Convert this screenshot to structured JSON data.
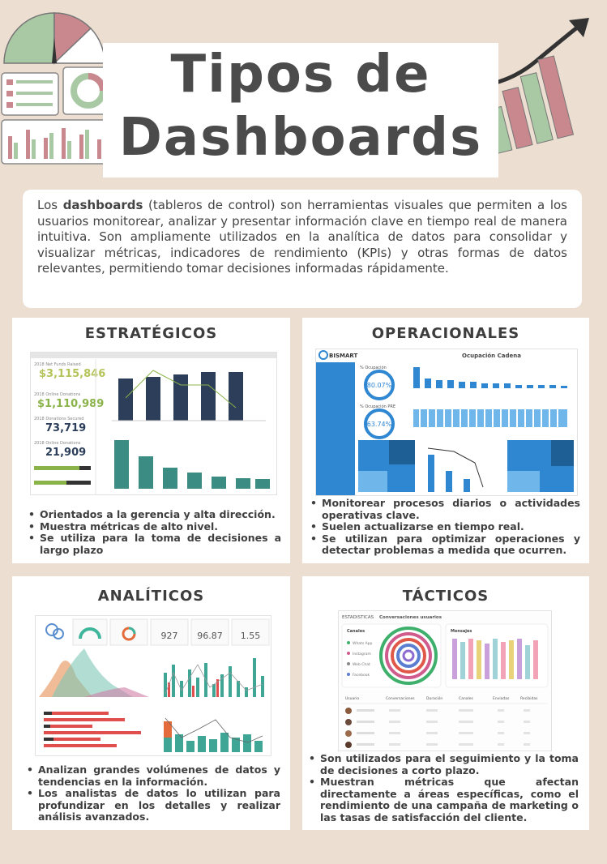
{
  "header": {
    "title_line1": "Tipos de",
    "title_line2": "Dashboards"
  },
  "intro": {
    "bold": "dashboards",
    "before": "Los ",
    "after": " (tableros de control) son herramientas visuales que permiten a los usuarios monitorear, analizar y presentar información clave en tiempo real de manera intuitiva. Son ampliamente utilizados en la analítica de datos para consolidar y visualizar métricas, indicadores de rendimiento (KPIs) y otras formas de datos relevantes, permitiendo tomar decisiones informadas rápidamente."
  },
  "cards": {
    "estrategicos": {
      "title": "ESTRATÉGICOS",
      "bullets": [
        "Orientados a la gerencia y alta dirección.",
        "Muestra métricas de alto nivel.",
        "Se utiliza para la toma de decisiones a largo plazo"
      ],
      "kpis": [
        "$3,115,846",
        "$1,110,989",
        "73,719",
        "21,909"
      ],
      "kpi_labels": [
        "2018 Net Funds Raised",
        "2018 Online Donations",
        "2018 Donations Secured",
        "2018 Online Donations"
      ]
    },
    "operacionales": {
      "title": "OPERACIONALES",
      "bullets": [
        "Monitorear procesos diarios o actividades operativas clave.",
        "Suelen actualizarse en tiempo real.",
        "Se utilizan para optimizar operaciones y detectar problemas a medida que ocurren."
      ],
      "brand": "BISMART",
      "heading": "Ocupación Cadena",
      "gauge1": "80.07%",
      "gauge2": "63.74%",
      "gauge1_label": "% Ocupación",
      "gauge2_label": "% Ocupación PRE"
    },
    "analiticos": {
      "title": "ANALÍTICOS",
      "bullets": [
        "Analizan grandes volúmenes de datos y tendencias en la información.",
        "Los analistas de datos lo utilizan para profundizar en los detalles y realizar análisis avanzados."
      ],
      "kpis": [
        "927",
        "96.87",
        "1.55"
      ]
    },
    "tacticos": {
      "title": "TÁCTICOS",
      "bullets": [
        "Son utilizados para el seguimiento y la toma de decisiones a corto plazo.",
        "Muestran métricas que afectan directamente a áreas específicas, como el rendimiento de una campaña de marketing o las tasas de satisfacción del cliente."
      ],
      "heading_a": "ESTADISTICAS",
      "heading_b": "Conversaciones usuarios",
      "panel_left": "Canales",
      "panel_right": "Mensajes",
      "channels": [
        "Whats App",
        "Instagram",
        "Web Chat",
        "Facebook"
      ],
      "columns": [
        "Usuario",
        "Conversaciones",
        "Duración",
        "Canales",
        "Enviadas",
        "Recibidas"
      ]
    }
  },
  "colors": {
    "background": "#ecdfd2",
    "title_text": "#4b4b4b",
    "accent_pink": "#c9878e",
    "accent_green": "#a9c9a4",
    "navy": "#2c3e5a",
    "teal": "#3b8c83",
    "blue": "#2f86d1"
  }
}
